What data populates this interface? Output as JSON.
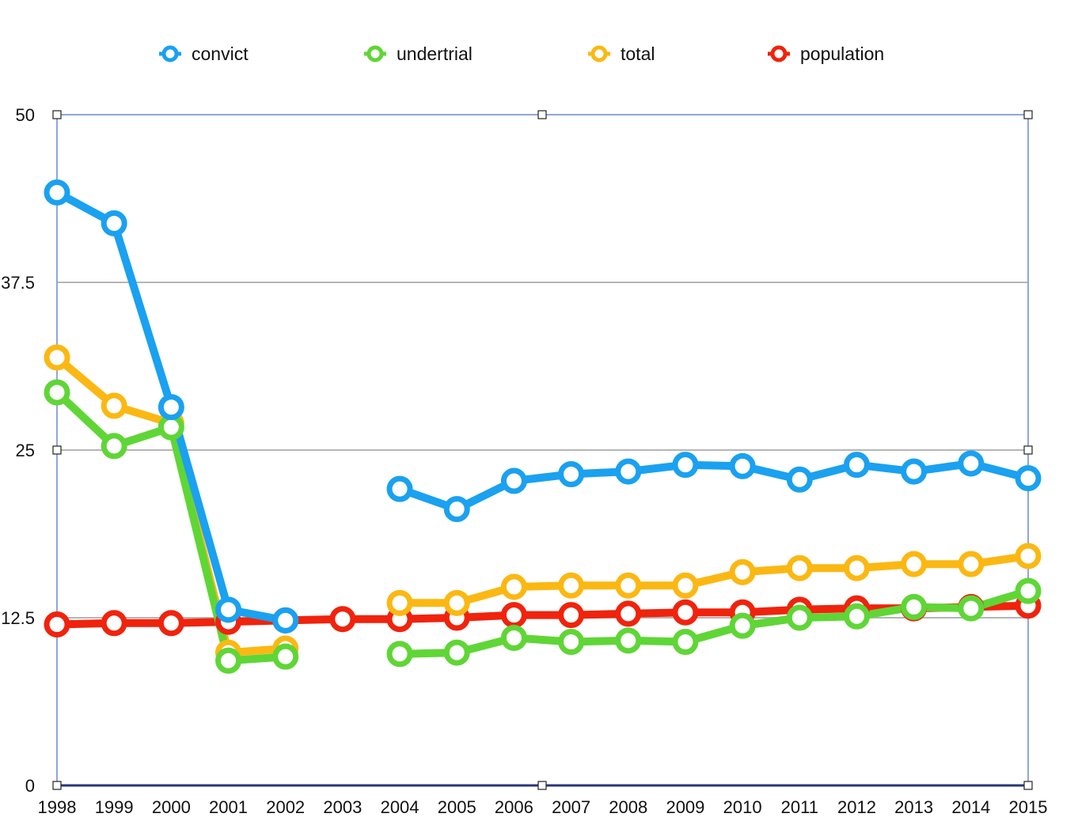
{
  "chart_data": {
    "type": "line",
    "title": "",
    "xlabel": "",
    "ylabel": "",
    "x": [
      1998,
      1999,
      2000,
      2001,
      2002,
      2003,
      2004,
      2005,
      2006,
      2007,
      2008,
      2009,
      2010,
      2011,
      2012,
      2013,
      2014,
      2015
    ],
    "xtick_labels": [
      "1998",
      "1999",
      "2000",
      "2001",
      "2002",
      "2003",
      "2004",
      "2005",
      "2006",
      "2007",
      "2008",
      "2009",
      "2010",
      "2011",
      "2012",
      "2013",
      "2014",
      "2015"
    ],
    "ylim": [
      0,
      50
    ],
    "yticks": [
      0,
      12.5,
      25,
      37.5,
      50
    ],
    "ytick_labels": [
      "0",
      "12.5",
      "25",
      "37.5",
      "50"
    ],
    "grid": true,
    "legend_position": "top",
    "series": [
      {
        "name": "convict",
        "color": "#1aa1f0",
        "values": [
          44.2,
          41.9,
          28.2,
          13.1,
          12.3,
          null,
          22.1,
          20.6,
          22.7,
          23.2,
          23.4,
          23.9,
          23.8,
          22.8,
          23.9,
          23.4,
          24.0,
          22.9
        ]
      },
      {
        "name": "undertrial",
        "color": "#5fd636",
        "values": [
          29.3,
          25.3,
          26.7,
          9.3,
          9.6,
          null,
          9.8,
          9.9,
          11.0,
          10.7,
          10.8,
          10.7,
          11.9,
          12.5,
          12.6,
          13.3,
          13.2,
          14.5
        ]
      },
      {
        "name": "total",
        "color": "#fbb813",
        "values": [
          31.9,
          28.3,
          27.0,
          9.9,
          10.2,
          null,
          13.6,
          13.6,
          14.8,
          14.9,
          14.9,
          14.9,
          15.9,
          16.2,
          16.2,
          16.5,
          16.5,
          17.1
        ]
      },
      {
        "name": "population",
        "color": "#f0230d",
        "values": [
          12.0,
          12.1,
          12.1,
          12.2,
          12.3,
          12.4,
          12.4,
          12.5,
          12.7,
          12.7,
          12.8,
          12.9,
          12.9,
          13.1,
          13.2,
          13.2,
          13.3,
          13.4
        ]
      }
    ]
  }
}
